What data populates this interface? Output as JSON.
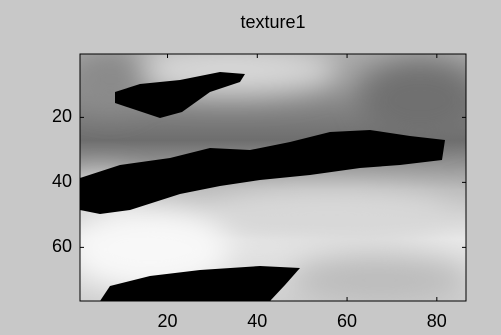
{
  "chart_data": {
    "type": "image",
    "title": "texture1",
    "xlim": [
      0.5,
      86.5
    ],
    "ylim": [
      0.5,
      76.5
    ],
    "y_reversed": true,
    "xticks": [
      20,
      40,
      60,
      80
    ],
    "yticks": [
      20,
      40,
      60
    ],
    "grid": false
  }
}
